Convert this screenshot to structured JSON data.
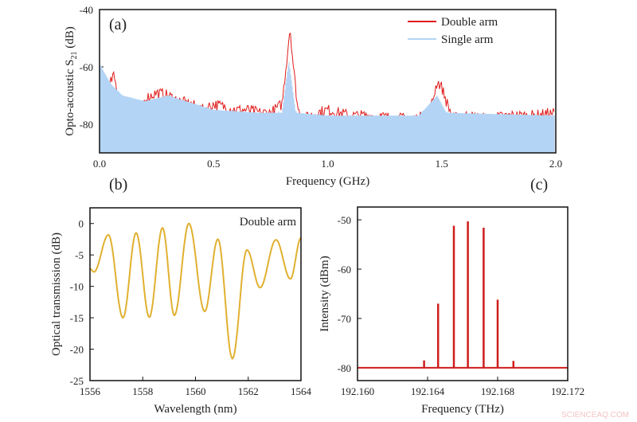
{
  "chart_data": [
    {
      "panel_label": "(a)",
      "type": "line",
      "xlabel": "Frequency (GHz)",
      "ylabel": "Opto-acoustic S21 (dB)",
      "xlim": [
        0,
        2.0
      ],
      "ylim": [
        -90,
        -40
      ],
      "xticks": [
        "0.0",
        "0.5",
        "1.0",
        "1.5",
        "2.0"
      ],
      "xtick_values": [
        0,
        0.5,
        1.0,
        1.5,
        2.0
      ],
      "yticks": [
        "-40",
        "-60",
        "-80"
      ],
      "ytick_values": [
        -40,
        -60,
        -80
      ],
      "legend": "top-right",
      "series": [
        {
          "name": "Double arm",
          "color": "#e01b1b",
          "x": [
            0.0,
            0.03,
            0.06,
            0.1,
            0.15,
            0.17,
            0.2,
            0.25,
            0.3,
            0.35,
            0.4,
            0.45,
            0.5,
            0.55,
            0.6,
            0.65,
            0.7,
            0.75,
            0.8,
            0.82,
            0.835,
            0.85,
            0.87,
            0.9,
            0.95,
            1.0,
            1.05,
            1.1,
            1.2,
            1.3,
            1.4,
            1.45,
            1.48,
            1.5,
            1.52,
            1.55,
            1.6,
            1.7,
            1.8,
            1.9,
            2.0
          ],
          "y": [
            -62,
            -70,
            -63,
            -74,
            -78,
            -79,
            -71,
            -69,
            -70,
            -72,
            -73,
            -75,
            -73,
            -74,
            -75,
            -75,
            -76,
            -76,
            -73,
            -58,
            -46,
            -60,
            -75,
            -78,
            -76,
            -75,
            -76,
            -77,
            -77,
            -78,
            -78,
            -75,
            -65,
            -67,
            -72,
            -78,
            -77,
            -78,
            -77,
            -77,
            -76
          ]
        },
        {
          "name": "Single arm",
          "color": "#b3d4f5",
          "x": [
            0.0,
            0.05,
            0.1,
            0.2,
            0.3,
            0.5,
            0.7,
            0.8,
            0.83,
            0.86,
            1.0,
            1.4,
            1.48,
            1.52,
            2.0
          ],
          "y": [
            -61,
            -68,
            -72,
            -74,
            -72,
            -77,
            -78,
            -78,
            -60,
            -78,
            -79,
            -79,
            -72,
            -78,
            -79
          ]
        }
      ]
    },
    {
      "panel_label": "(b)",
      "type": "line",
      "annotation": "Double arm",
      "xlabel": "Wavelength (nm)",
      "ylabel": "Optical transmission (dB)",
      "xlim": [
        1556,
        1564
      ],
      "ylim": [
        -25,
        2.5
      ],
      "xticks": [
        "1556",
        "1558",
        "1560",
        "1562",
        "1564"
      ],
      "xtick_values": [
        1556,
        1558,
        1560,
        1562,
        1564
      ],
      "yticks": [
        "0",
        "-5",
        "-10",
        "-15",
        "-20",
        "-25"
      ],
      "ytick_values": [
        0,
        -5,
        -10,
        -15,
        -20,
        -25
      ],
      "series": [
        {
          "color": "#e0b030",
          "x": [
            1556,
            1556.15,
            1556.7,
            1557.25,
            1557.75,
            1558.25,
            1558.75,
            1559.2,
            1559.75,
            1560.35,
            1560.85,
            1561.4,
            1561.95,
            1562.45,
            1563.05,
            1563.6,
            1564
          ],
          "y": [
            -7.2,
            -7.7,
            -1.8,
            -15,
            -1.5,
            -14.9,
            -0.7,
            -14.6,
            0,
            -14,
            -2.5,
            -21.5,
            -4.2,
            -10.2,
            -2.6,
            -8.8,
            -2.3
          ]
        }
      ]
    },
    {
      "panel_label": "(c)",
      "type": "bar",
      "xlabel": "Frequency (THz)",
      "ylabel": "Intensity (dBm)",
      "xlim": [
        192.16,
        192.172
      ],
      "ylim": [
        -82.6,
        -47.4
      ],
      "baseline": -80,
      "xticks": [
        "192.160",
        "192.164",
        "192.168",
        "192.172"
      ],
      "xtick_values": [
        192.16,
        192.164,
        192.168,
        192.172
      ],
      "yticks": [
        "-50",
        "-60",
        "-70",
        "-80"
      ],
      "ytick_values": [
        -50,
        -60,
        -70,
        -80
      ],
      "series": [
        {
          "color": "#d01c1c",
          "x": [
            192.1638,
            192.1646,
            192.1655,
            192.1663,
            192.1672,
            192.168,
            192.1689
          ],
          "y": [
            -78.5,
            -67,
            -51.2,
            -50.3,
            -51.6,
            -66.2,
            -78.6
          ]
        }
      ]
    }
  ],
  "watermark": "SCIENCEAQ.COM"
}
